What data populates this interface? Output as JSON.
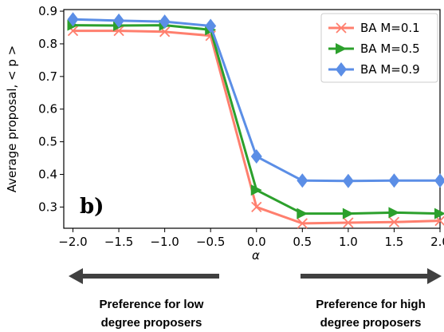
{
  "chart_data": {
    "type": "line",
    "title": "",
    "xlabel": "α",
    "ylabel": "Average proposal, < p >",
    "x": [
      -2.0,
      -1.5,
      -1.0,
      -0.5,
      0.0,
      0.5,
      1.0,
      1.5,
      2.0
    ],
    "xticks": [
      "−2.0",
      "−1.5",
      "−1.0",
      "−0.5",
      "0.0",
      "0.5",
      "1.0",
      "1.5",
      "2.0"
    ],
    "yticks": [
      "0.3",
      "0.4",
      "0.5",
      "0.6",
      "0.7",
      "0.8",
      "0.9"
    ],
    "xlim": [
      -2.1,
      2.0
    ],
    "ylim": [
      0.235,
      0.905
    ],
    "grid": false,
    "legend_position": "top-right",
    "series": [
      {
        "name": "BA M=0.1",
        "color": "#ff7f6e",
        "marker": "x",
        "values": [
          0.84,
          0.84,
          0.837,
          0.825,
          0.3,
          0.25,
          0.252,
          0.254,
          0.258
        ]
      },
      {
        "name": "BA M=0.5",
        "color": "#2ca02c",
        "marker": "triangle-right",
        "values": [
          0.857,
          0.856,
          0.857,
          0.843,
          0.352,
          0.28,
          0.28,
          0.283,
          0.28
        ]
      },
      {
        "name": "BA M=0.9",
        "color": "#5b8ee6",
        "marker": "diamond",
        "values": [
          0.875,
          0.871,
          0.868,
          0.855,
          0.455,
          0.381,
          0.38,
          0.381,
          0.381
        ]
      }
    ],
    "panel_label": "b)",
    "annotations": {
      "left_arrow_text": [
        "Preference for low",
        "degree proposers"
      ],
      "right_arrow_text": [
        "Preference for high",
        "degree proposers"
      ]
    }
  }
}
